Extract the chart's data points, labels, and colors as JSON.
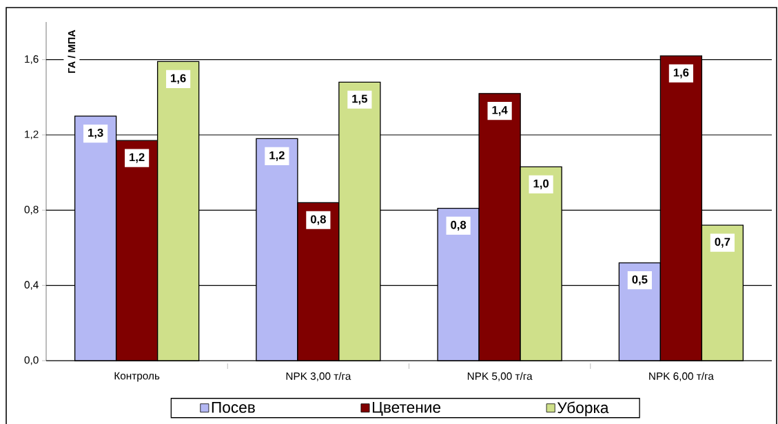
{
  "chart_data": {
    "type": "bar",
    "ylabel": "ГА / МПА",
    "categories": [
      "Контроль",
      "NPK 3,00 т/га",
      "NPK 5,00 т/га",
      "NPK 6,00 т/га"
    ],
    "series": [
      {
        "name": "Посев",
        "color": "#b4b8f4",
        "values": [
          1.3,
          1.18,
          0.81,
          0.52
        ],
        "value_labels": [
          "1,3",
          "1,2",
          "0,8",
          "0,5"
        ]
      },
      {
        "name": "Цветение",
        "color": "#800000",
        "values": [
          1.17,
          0.84,
          1.42,
          1.62
        ],
        "value_labels": [
          "1,2",
          "0,8",
          "1,4",
          "1,6"
        ]
      },
      {
        "name": "Уборка",
        "color": "#cfe08a",
        "values": [
          1.59,
          1.48,
          1.03,
          0.72
        ],
        "value_labels": [
          "1,6",
          "1,5",
          "1,0",
          "0,7"
        ]
      }
    ],
    "ylim": [
      0,
      1.8
    ],
    "yticks": [
      {
        "value": 0,
        "label": "0,0"
      },
      {
        "value": 0.4,
        "label": "0,4"
      },
      {
        "value": 0.8,
        "label": "0,8"
      },
      {
        "value": 1.2,
        "label": "1,2"
      },
      {
        "value": 1.6,
        "label": "1,6"
      }
    ],
    "grid": "y",
    "legend": "bottom"
  }
}
